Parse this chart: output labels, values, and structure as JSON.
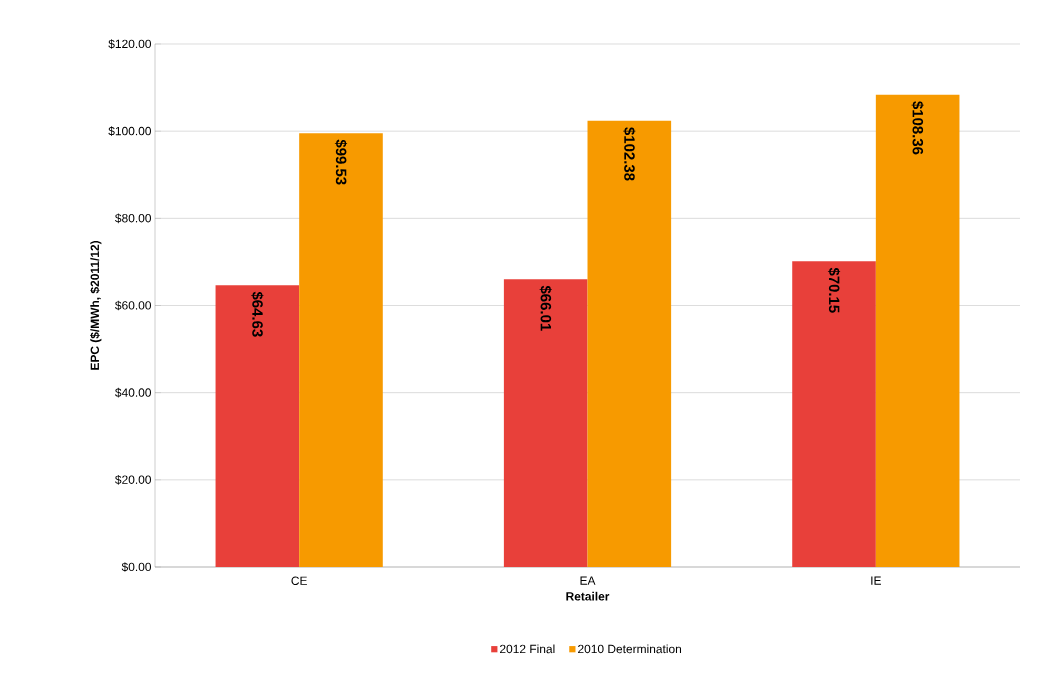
{
  "chart_data": {
    "type": "bar",
    "xlabel": "Retailer",
    "ylabel": "EPC ($/MWh, $2011/12)",
    "categories": [
      "CE",
      "EA",
      "IE"
    ],
    "series": [
      {
        "name": "2012 Final",
        "color": "#e8403a",
        "values": [
          64.63,
          66.01,
          70.15
        ],
        "value_labels": [
          "$64.63",
          "$66.01",
          "$70.15"
        ]
      },
      {
        "name": "2010 Determination",
        "color": "#f79a00",
        "values": [
          99.53,
          102.38,
          108.36
        ],
        "value_labels": [
          "$99.53",
          "$102.38",
          "$108.36"
        ]
      }
    ],
    "ylim": [
      0,
      120
    ],
    "yticks": [
      {
        "value": 0,
        "label": "$0.00"
      },
      {
        "value": 20,
        "label": "$20.00"
      },
      {
        "value": 40,
        "label": "$40.00"
      },
      {
        "value": 60,
        "label": "$60.00"
      },
      {
        "value": 80,
        "label": "$80.00"
      },
      {
        "value": 100,
        "label": "$100.00"
      },
      {
        "value": 120,
        "label": "$120.00"
      }
    ],
    "grid": "y",
    "legend": "bottom"
  }
}
